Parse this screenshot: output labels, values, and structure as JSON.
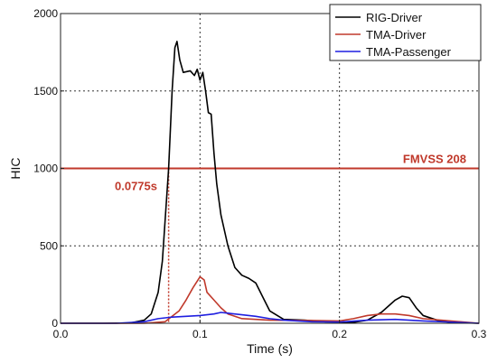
{
  "chart_data": {
    "type": "line",
    "title": "",
    "xlabel": "Time (s)",
    "ylabel": "HIC",
    "xlim": [
      0.0,
      0.3
    ],
    "ylim": [
      0,
      2000
    ],
    "x_ticks": [
      0.0,
      0.1,
      0.2,
      0.3
    ],
    "x_tick_labels": [
      "0.0",
      "0.1",
      "0.2",
      "0.3"
    ],
    "y_ticks": [
      0,
      500,
      1000,
      1500,
      2000
    ],
    "y_tick_labels": [
      "0",
      "500",
      "1000",
      "1500",
      "2000"
    ],
    "grid": "dotted at 0.1, 0.2 and 500, 1000, 1500",
    "legend_position": "top-right",
    "series": [
      {
        "name": "RIG-Driver",
        "color": "#000000",
        "points": [
          [
            0.0,
            0
          ],
          [
            0.03,
            0
          ],
          [
            0.05,
            2
          ],
          [
            0.06,
            20
          ],
          [
            0.065,
            60
          ],
          [
            0.07,
            200
          ],
          [
            0.073,
            400
          ],
          [
            0.0775,
            1000
          ],
          [
            0.08,
            1500
          ],
          [
            0.082,
            1780
          ],
          [
            0.0835,
            1820
          ],
          [
            0.0855,
            1700
          ],
          [
            0.088,
            1620
          ],
          [
            0.093,
            1630
          ],
          [
            0.096,
            1600
          ],
          [
            0.098,
            1640
          ],
          [
            0.1,
            1570
          ],
          [
            0.102,
            1620
          ],
          [
            0.104,
            1500
          ],
          [
            0.106,
            1360
          ],
          [
            0.108,
            1350
          ],
          [
            0.11,
            1100
          ],
          [
            0.112,
            900
          ],
          [
            0.115,
            700
          ],
          [
            0.12,
            500
          ],
          [
            0.125,
            360
          ],
          [
            0.13,
            310
          ],
          [
            0.135,
            290
          ],
          [
            0.14,
            260
          ],
          [
            0.145,
            170
          ],
          [
            0.15,
            80
          ],
          [
            0.16,
            25
          ],
          [
            0.175,
            20
          ],
          [
            0.19,
            10
          ],
          [
            0.2,
            8
          ],
          [
            0.21,
            6
          ],
          [
            0.22,
            20
          ],
          [
            0.23,
            70
          ],
          [
            0.24,
            150
          ],
          [
            0.245,
            175
          ],
          [
            0.25,
            165
          ],
          [
            0.255,
            100
          ],
          [
            0.26,
            50
          ],
          [
            0.27,
            20
          ],
          [
            0.28,
            5
          ],
          [
            0.3,
            0
          ]
        ]
      },
      {
        "name": "TMA-Driver",
        "color": "#c0392b",
        "points": [
          [
            0.0,
            0
          ],
          [
            0.06,
            0
          ],
          [
            0.075,
            10
          ],
          [
            0.085,
            80
          ],
          [
            0.09,
            150
          ],
          [
            0.095,
            230
          ],
          [
            0.1,
            300
          ],
          [
            0.103,
            280
          ],
          [
            0.105,
            200
          ],
          [
            0.11,
            150
          ],
          [
            0.115,
            100
          ],
          [
            0.12,
            60
          ],
          [
            0.13,
            30
          ],
          [
            0.15,
            20
          ],
          [
            0.18,
            18
          ],
          [
            0.2,
            15
          ],
          [
            0.21,
            30
          ],
          [
            0.22,
            50
          ],
          [
            0.23,
            60
          ],
          [
            0.24,
            60
          ],
          [
            0.25,
            50
          ],
          [
            0.26,
            30
          ],
          [
            0.3,
            0
          ]
        ]
      },
      {
        "name": "TMA-Passenger",
        "color": "#1f1fe0",
        "points": [
          [
            0.0,
            0
          ],
          [
            0.04,
            0
          ],
          [
            0.06,
            10
          ],
          [
            0.07,
            30
          ],
          [
            0.08,
            40
          ],
          [
            0.09,
            45
          ],
          [
            0.1,
            50
          ],
          [
            0.11,
            60
          ],
          [
            0.115,
            70
          ],
          [
            0.12,
            65
          ],
          [
            0.13,
            55
          ],
          [
            0.14,
            45
          ],
          [
            0.15,
            30
          ],
          [
            0.16,
            20
          ],
          [
            0.18,
            10
          ],
          [
            0.2,
            8
          ],
          [
            0.22,
            20
          ],
          [
            0.24,
            25
          ],
          [
            0.26,
            15
          ],
          [
            0.3,
            0
          ]
        ]
      }
    ],
    "reference_line": {
      "label": "FMVSS 208",
      "y": 1000,
      "color": "#c0392b"
    },
    "annotation": {
      "label": "0.0775s",
      "x": 0.0775,
      "y": 1000,
      "color": "#c0392b"
    }
  }
}
